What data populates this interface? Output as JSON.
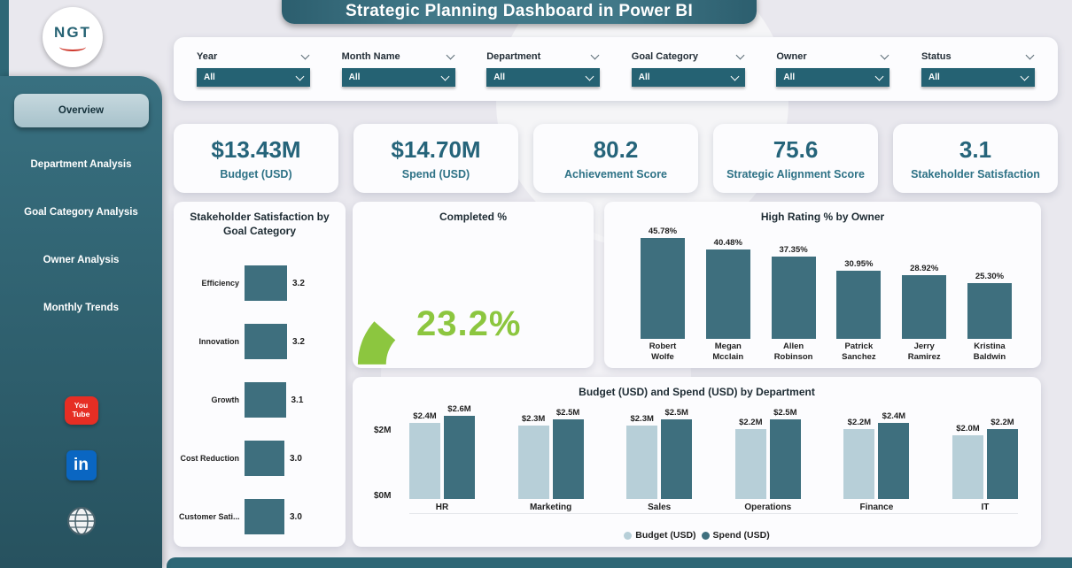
{
  "title": "Strategic Planning Dashboard in Power BI",
  "logo": {
    "text": "NGT"
  },
  "sidebar": {
    "items": [
      {
        "label": "Overview",
        "active": true
      },
      {
        "label": "Department Analysis",
        "active": false
      },
      {
        "label": "Goal Category Analysis",
        "active": false
      },
      {
        "label": "Owner Analysis",
        "active": false
      },
      {
        "label": "Monthly Trends",
        "active": false
      }
    ],
    "social": [
      {
        "name": "youtube",
        "lines": [
          "You",
          "Tube"
        ]
      },
      {
        "name": "linkedin",
        "label": "in"
      },
      {
        "name": "website"
      }
    ]
  },
  "filters": [
    {
      "label": "Year",
      "value": "All"
    },
    {
      "label": "Month Name",
      "value": "All"
    },
    {
      "label": "Department",
      "value": "All"
    },
    {
      "label": "Goal Category",
      "value": "All"
    },
    {
      "label": "Owner",
      "value": "All"
    },
    {
      "label": "Status",
      "value": "All"
    }
  ],
  "kpis": [
    {
      "value": "$13.43M",
      "label": "Budget (USD)"
    },
    {
      "value": "$14.70M",
      "label": "Spend (USD)"
    },
    {
      "value": "80.2",
      "label": "Achievement Score"
    },
    {
      "value": "75.6",
      "label": "Strategic Alignment Score"
    },
    {
      "value": "3.1",
      "label": "Stakeholder Satisfaction"
    }
  ],
  "colors": {
    "accent": "#2b6777",
    "sidebar": "#2f6373",
    "bar": "#3e6f7e",
    "budget": "#b7cfd8",
    "gauge_green": "#8cc63f",
    "youtube": "#e62e24",
    "linkedin": "#0a66c2",
    "background": "#e9e8ee"
  },
  "chart_data": [
    {
      "type": "bar",
      "orientation": "horizontal",
      "title": "Stakeholder Satisfaction by Goal Category",
      "categories": [
        "Efficiency",
        "Innovation",
        "Growth",
        "Cost Reduction",
        "Customer Sati..."
      ],
      "values": [
        3.2,
        3.2,
        3.1,
        3.0,
        3.0
      ],
      "value_labels": [
        "3.2",
        "3.2",
        "3.1",
        "3.0",
        "3.0"
      ],
      "xlim": [
        0,
        3.5
      ],
      "bar_color": "#3e6f7e"
    },
    {
      "type": "gauge",
      "title": "Completed %",
      "value": 23.2,
      "max": 100,
      "label": "23.2%",
      "color": "#8cc63f"
    },
    {
      "type": "bar",
      "title": "High Rating % by Owner",
      "categories": [
        "Robert Wolfe",
        "Megan Mcclain",
        "Allen Robinson",
        "Patrick Sanchez",
        "Jerry Ramirez",
        "Kristina Baldwin"
      ],
      "values": [
        45.78,
        40.48,
        37.35,
        30.95,
        28.92,
        25.3
      ],
      "value_labels": [
        "45.78%",
        "40.48%",
        "37.35%",
        "30.95%",
        "28.92%",
        "25.30%"
      ],
      "ylim": [
        0,
        50
      ],
      "bar_color": "#3e6f7e"
    },
    {
      "type": "bar",
      "grouped": true,
      "title": "Budget (USD) and Spend (USD) by Department",
      "categories": [
        "HR",
        "Marketing",
        "Sales",
        "Operations",
        "Finance",
        "IT"
      ],
      "series": [
        {
          "name": "Budget (USD)",
          "color": "#b7cfd8",
          "values": [
            2.4,
            2.3,
            2.3,
            2.2,
            2.2,
            2.0
          ],
          "labels": [
            "$2.4M",
            "$2.3M",
            "$2.3M",
            "$2.2M",
            "$2.2M",
            "$2.0M"
          ]
        },
        {
          "name": "Spend (USD)",
          "color": "#3e6f7e",
          "values": [
            2.6,
            2.5,
            2.5,
            2.5,
            2.4,
            2.2
          ],
          "labels": [
            "$2.6M",
            "$2.5M",
            "$2.5M",
            "$2.5M",
            "$2.4M",
            "$2.2M"
          ]
        }
      ],
      "y_ticks": [
        "$2M",
        "$0M"
      ],
      "ylim": [
        0,
        2.8
      ],
      "legend_position": "bottom"
    }
  ]
}
